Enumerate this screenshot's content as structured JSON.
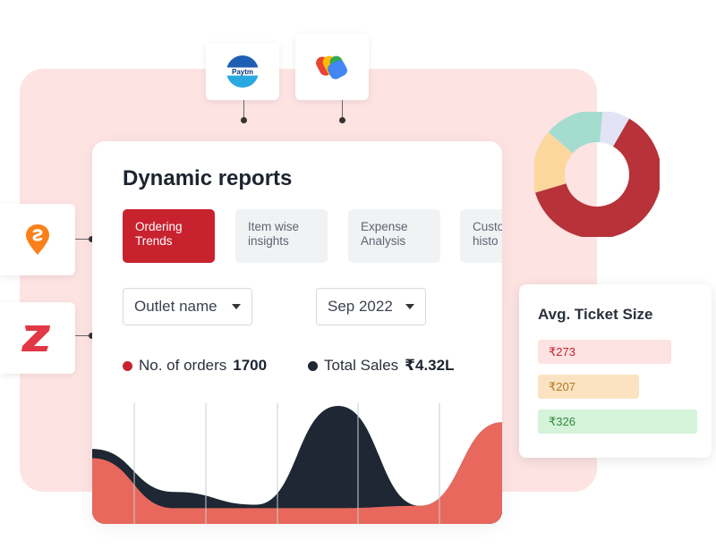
{
  "colors": {
    "accent": "#c8222f",
    "background_panel": "#fde3e2",
    "orders_series": "#e8685d",
    "sales_series": "#1e2733"
  },
  "logos": [
    {
      "name": "Paytm",
      "text": "Paytm"
    },
    {
      "name": "Google Pay",
      "text": ""
    },
    {
      "name": "Swiggy",
      "text": ""
    },
    {
      "name": "Zomato",
      "text": ""
    }
  ],
  "report": {
    "title": "Dynamic reports",
    "tabs": [
      {
        "label": "Ordering Trends",
        "active": true
      },
      {
        "label": "Item wise insights",
        "active": false
      },
      {
        "label": "Expense Analysis",
        "active": false
      },
      {
        "label": "Custo histo",
        "active": false
      }
    ],
    "filters": {
      "outlet": "Outlet name",
      "month": "Sep 2022"
    },
    "metrics": [
      {
        "label": "No. of orders",
        "value": "1700",
        "color": "#c8222f"
      },
      {
        "label": "Total Sales",
        "value": "₹4.32L",
        "color": "#1e2733"
      }
    ]
  },
  "chart_data": {
    "type": "area",
    "series": [
      {
        "values": [
          0.63,
          0.26,
          0.15,
          1.0,
          0.14,
          0.86
        ]
      },
      {
        "values": [
          0.55,
          0.12,
          0.12,
          0.12,
          0.14,
          0.86
        ]
      }
    ],
    "x": [
      1,
      2,
      3,
      4,
      5,
      6
    ],
    "ylim": [
      0,
      1
    ],
    "grid": true
  },
  "ticket": {
    "title": "Avg. Ticket Size",
    "bars": [
      {
        "label": "₹273",
        "value": 273,
        "bg": "#fde3e2",
        "fg": "#c8222f"
      },
      {
        "label": "₹207",
        "value": 207,
        "bg": "#fbe3c2",
        "fg": "#b4771f"
      },
      {
        "label": "₹326",
        "value": 326,
        "bg": "#d5f3d8",
        "fg": "#2f8a3e"
      }
    ]
  },
  "donut": {
    "segments": [
      {
        "value": 0.62,
        "color": "#b73239"
      },
      {
        "value": 0.16,
        "color": "#fbd79e"
      },
      {
        "value": 0.15,
        "color": "#a4dcd0"
      },
      {
        "value": 0.07,
        "color": "#e2e3f4"
      }
    ]
  }
}
